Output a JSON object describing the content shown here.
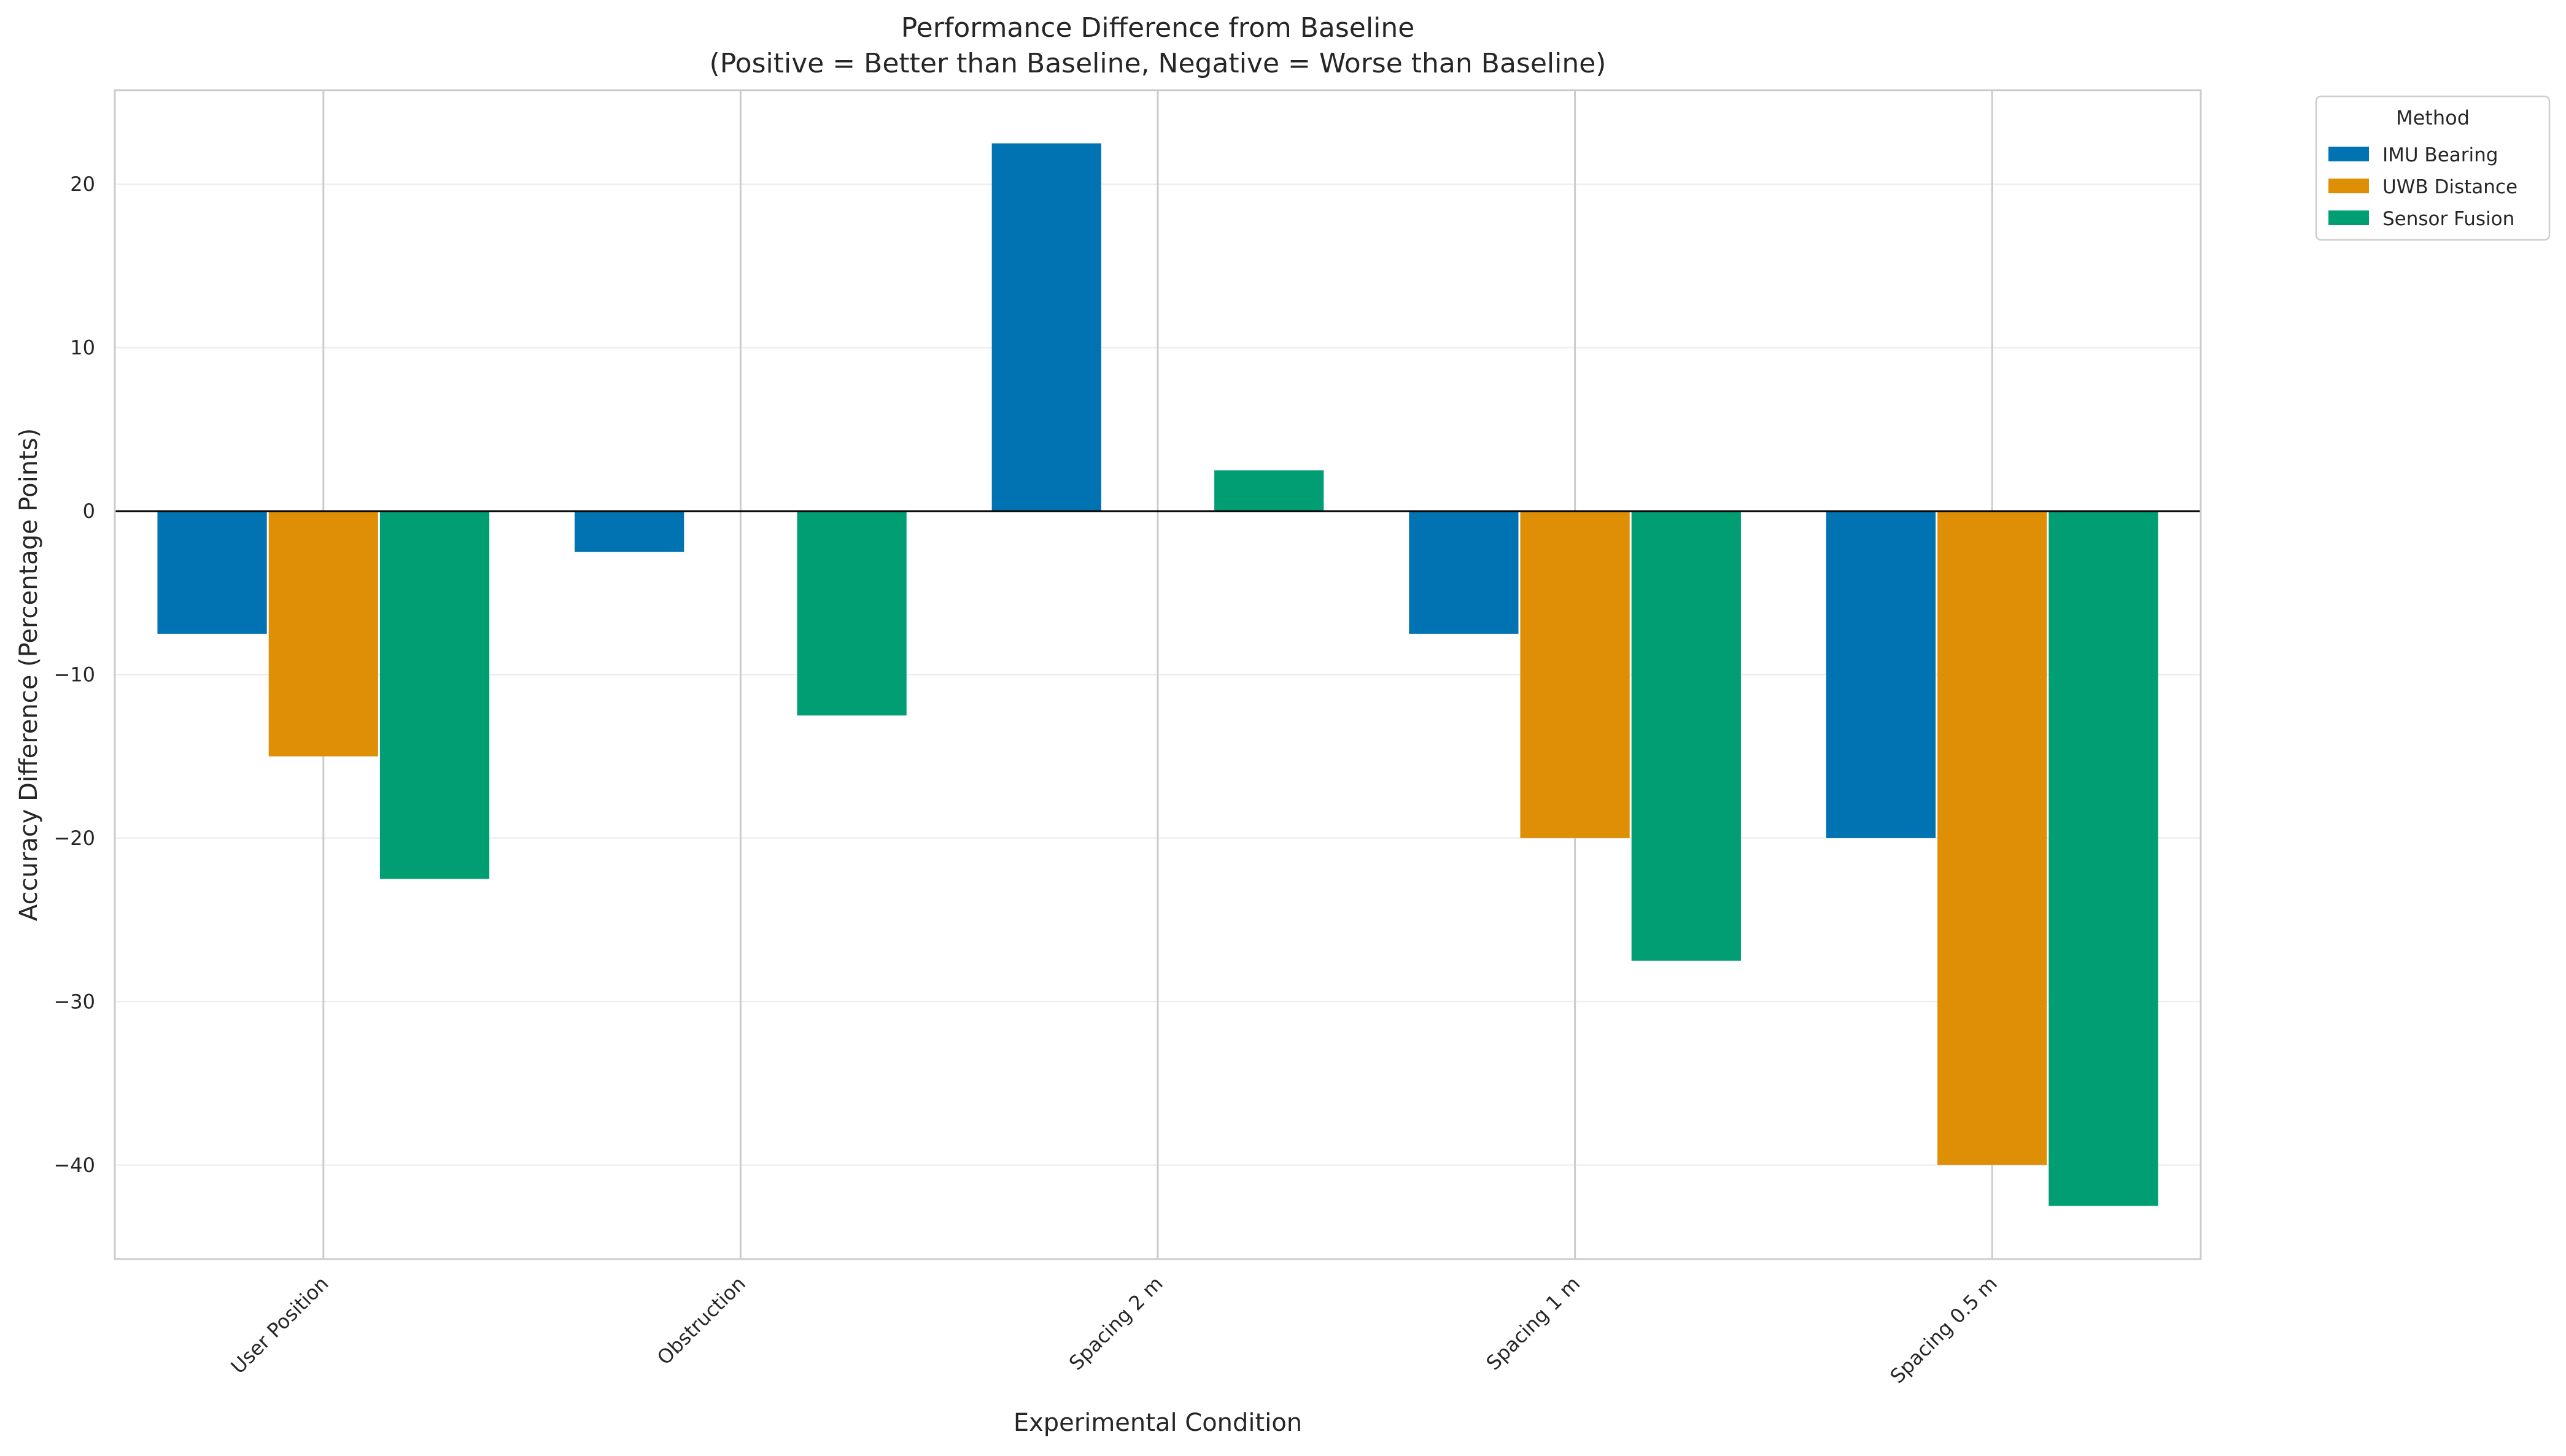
{
  "chart_data": {
    "type": "bar",
    "title": [
      "Performance Difference from Baseline",
      "(Positive = Better than Baseline, Negative = Worse than Baseline)"
    ],
    "xlabel": "Experimental Condition",
    "ylabel": "Accuracy Difference (Percentage Points)",
    "categories": [
      "User Position",
      "Obstruction",
      "Spacing 2 m",
      "Spacing 1 m",
      "Spacing 0.5 m"
    ],
    "series": [
      {
        "name": "IMU Bearing",
        "color": "#0173b2",
        "values": [
          -7.5,
          -2.5,
          22.5,
          -7.5,
          -20
        ]
      },
      {
        "name": "UWB Distance",
        "color": "#de8f05",
        "values": [
          -15,
          0,
          0,
          -20,
          -40
        ]
      },
      {
        "name": "Sensor Fusion",
        "color": "#029e73",
        "values": [
          -22.5,
          -12.5,
          2.5,
          -27.5,
          -42.5
        ]
      }
    ],
    "ylim": [
      -45.75,
      25.75
    ],
    "yticks": [
      20,
      10,
      0,
      -10,
      -20,
      -30,
      -40
    ],
    "ytick_labels": [
      "20",
      "10",
      "0",
      "−10",
      "−20",
      "−30",
      "−40"
    ],
    "legend": {
      "title": "Method",
      "placement": "outside-top-right"
    },
    "grid": true,
    "zero_line": true
  }
}
